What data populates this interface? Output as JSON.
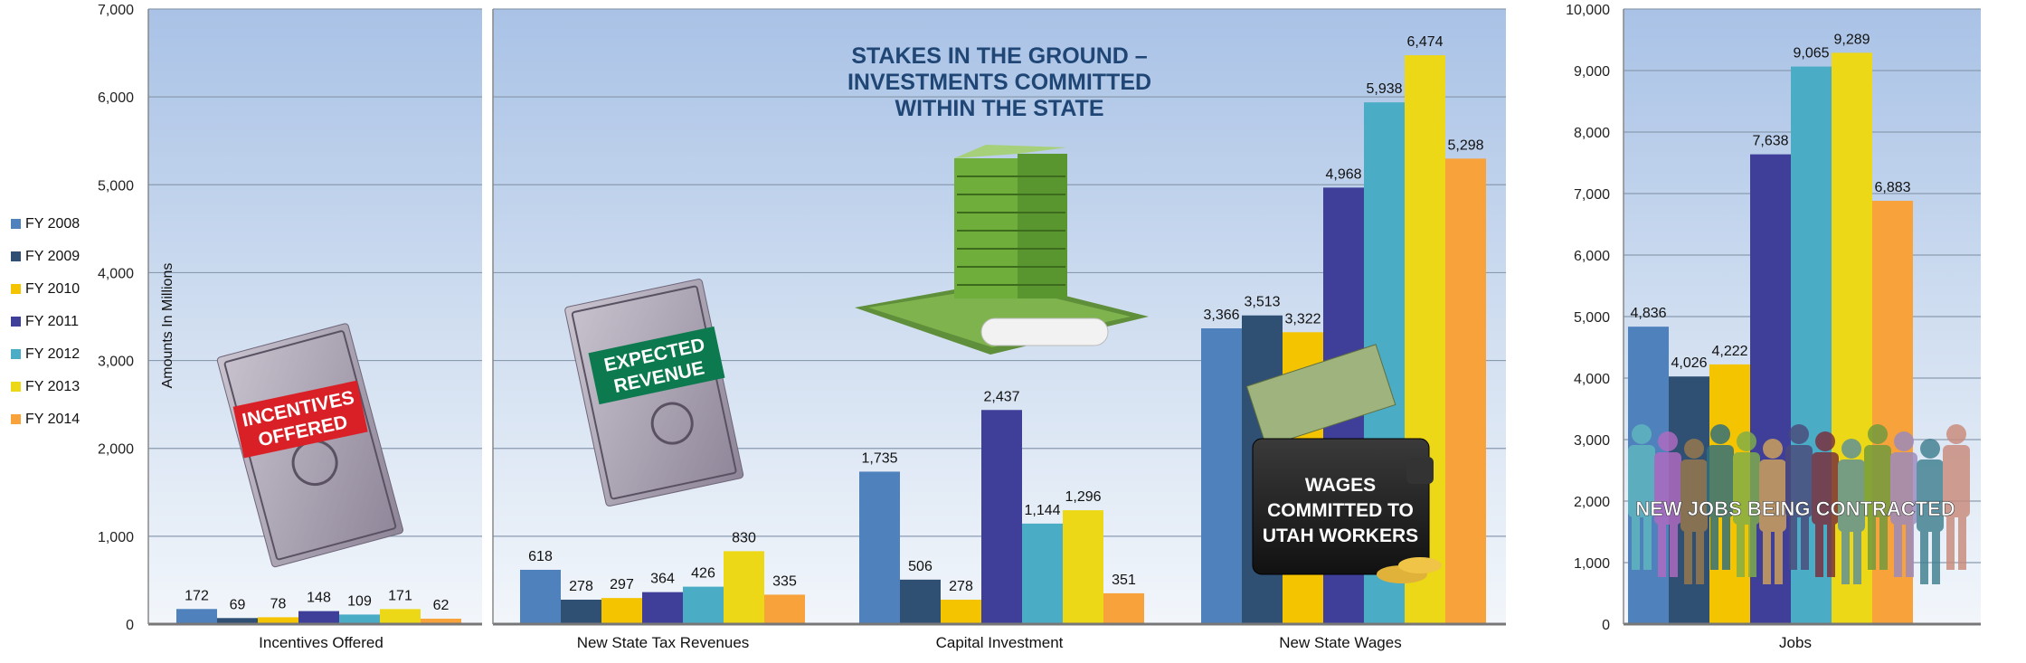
{
  "chart_data": {
    "type": "bar",
    "y_axis_label": "Amounts In Millions",
    "legend": [
      {
        "name": "FY 2008",
        "color": "#4f81bd"
      },
      {
        "name": "FY 2009",
        "color": "#2f4f73"
      },
      {
        "name": "FY 2010",
        "color": "#f5c400"
      },
      {
        "name": "FY 2011",
        "color": "#3f3f9a"
      },
      {
        "name": "FY 2012",
        "color": "#4bacc6"
      },
      {
        "name": "FY 2013",
        "color": "#ecd816"
      },
      {
        "name": "FY 2014",
        "color": "#f7a23b"
      }
    ],
    "panels": [
      {
        "id": "left",
        "ylim": [
          0,
          7000
        ],
        "ticks": [
          "0",
          "1,000",
          "2,000",
          "3,000",
          "4,000",
          "5,000",
          "6,000",
          "7,000"
        ],
        "groups": [
          {
            "category": "Incentives Offered",
            "values": [
              172,
              69,
              78,
              148,
              109,
              171,
              62
            ],
            "labels": [
              "172",
              "69",
              "78",
              "148",
              "109",
              "171",
              "62"
            ]
          }
        ]
      },
      {
        "id": "middle",
        "ylim": [
          0,
          7000
        ],
        "ticks": [],
        "groups": [
          {
            "category": "New State Tax Revenues",
            "values": [
              618,
              278,
              297,
              364,
              426,
              830,
              335
            ],
            "labels": [
              "618",
              "278",
              "297",
              "364",
              "426",
              "830",
              "335"
            ]
          },
          {
            "category": "Capital Investment",
            "values": [
              1735,
              506,
              278,
              2437,
              1144,
              1296,
              351
            ],
            "labels": [
              "1,735",
              "506",
              "278",
              "2,437",
              "1,144",
              "1,296",
              "351"
            ]
          },
          {
            "category": "New State Wages",
            "values": [
              3366,
              3513,
              3322,
              4968,
              5938,
              6474,
              5298
            ],
            "labels": [
              "3,366",
              "3,513",
              "3,322",
              "4,968",
              "5,938",
              "6,474",
              "5,298"
            ]
          }
        ]
      },
      {
        "id": "right",
        "ylim": [
          0,
          10000
        ],
        "ticks": [
          "0",
          "1,000",
          "2,000",
          "3,000",
          "4,000",
          "5,000",
          "6,000",
          "7,000",
          "8,000",
          "9,000",
          "10,000"
        ],
        "groups": [
          {
            "category": "Jobs",
            "values": [
              4836,
              4026,
              4222,
              7638,
              9065,
              9289,
              6883
            ],
            "labels": [
              "4,836",
              "4,026",
              "4,222",
              "7,638",
              "9,065",
              "9,289",
              "6,883"
            ]
          }
        ]
      }
    ],
    "annotations": {
      "headline": [
        "STAKES IN THE GROUND –",
        "INVESTMENTS COMMITTED",
        "WITHIN THE STATE"
      ],
      "incentives_banner": [
        "INCENTIVES",
        "OFFERED"
      ],
      "revenue_banner": [
        "EXPECTED",
        "REVENUE"
      ],
      "wages_banner": [
        "WAGES",
        "COMMITTED TO",
        "UTAH WORKERS"
      ],
      "jobs_banner": "NEW JOBS BEING CONTRACTED"
    }
  }
}
